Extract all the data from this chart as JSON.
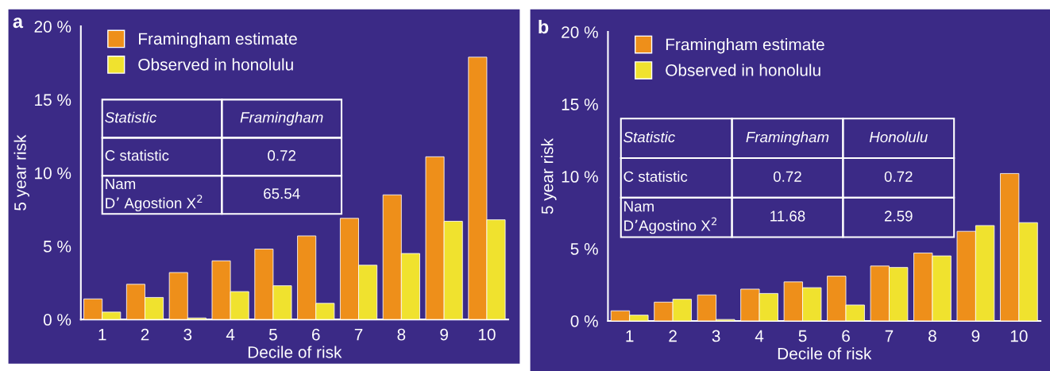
{
  "chart_data": [
    {
      "type": "bar",
      "xlabel": "Decile of risk",
      "ylabel": "5 year risk",
      "categories": [
        "1",
        "2",
        "3",
        "4",
        "5",
        "6",
        "7",
        "8",
        "9",
        "10"
      ],
      "series": [
        {
          "name": "Framingham estimate",
          "color": "#ee8f1a",
          "values": [
            1.4,
            2.4,
            3.2,
            4.0,
            4.8,
            5.7,
            6.9,
            8.5,
            11.1,
            17.9
          ]
        },
        {
          "name": "Observed in honolulu",
          "color": "#f0e22e",
          "values": [
            0.5,
            1.5,
            0.1,
            1.9,
            2.3,
            1.1,
            3.7,
            4.5,
            6.7,
            6.8
          ]
        }
      ],
      "ylim": [
        0,
        20
      ],
      "yticks": [
        {
          "value": 0,
          "label": "0 %"
        },
        {
          "value": 5,
          "label": "5 %"
        },
        {
          "value": 10,
          "label": "10 %"
        },
        {
          "value": 15,
          "label": "15 %"
        },
        {
          "value": 20,
          "label": "20 %"
        }
      ],
      "grid": false,
      "legend": "top left",
      "annotations": [
        "a",
        "Statistic",
        "Framingham",
        "C statistic",
        "0.72",
        "Nam\nD’ Agostion X$^{2}$",
        "65.54"
      ]
    },
    {
      "type": "bar",
      "xlabel": "Decile of risk",
      "ylabel": "5 year risk",
      "categories": [
        "1",
        "2",
        "3",
        "4",
        "5",
        "6",
        "7",
        "8",
        "9",
        "10"
      ],
      "series": [
        {
          "name": "Framingham estimate",
          "color": "#ee8f1a",
          "values": [
            0.7,
            1.3,
            1.8,
            2.2,
            2.7,
            3.1,
            3.8,
            4.7,
            6.2,
            10.2
          ]
        },
        {
          "name": "Observed in honolulu",
          "color": "#f0e22e",
          "values": [
            0.4,
            1.5,
            0.1,
            1.9,
            2.3,
            1.1,
            3.7,
            4.5,
            6.6,
            6.8
          ]
        }
      ],
      "ylim": [
        0,
        20
      ],
      "yticks": [
        {
          "value": 0,
          "label": "0 %"
        },
        {
          "value": 5,
          "label": "5 %"
        },
        {
          "value": 10,
          "label": "10 %"
        },
        {
          "value": 15,
          "label": "15 %"
        },
        {
          "value": 20,
          "label": "20 %"
        }
      ],
      "grid": false,
      "legend": "top left",
      "annotations": [
        "b",
        "Statistic",
        "Framingham",
        "Honolulu",
        "C statistic",
        "0.72",
        "0.72",
        "Nam\nD’Agostino X$^{2}$",
        "11.68",
        "2.59"
      ]
    }
  ]
}
